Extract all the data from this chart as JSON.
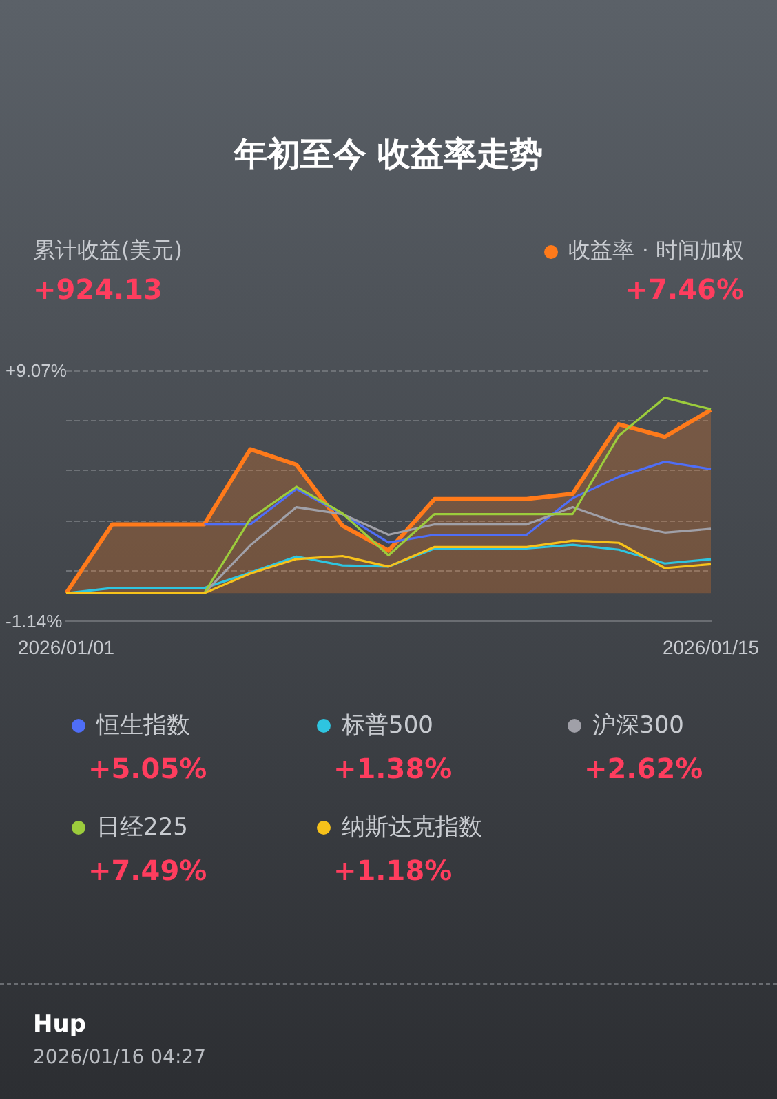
{
  "chart_data": {
    "type": "line",
    "title": "年初至今 收益率走势",
    "categories": [
      "2026/01/01",
      null,
      null,
      null,
      null,
      null,
      null,
      null,
      null,
      null,
      null,
      null,
      null,
      null,
      "2026/01/15"
    ],
    "series": [
      {
        "name": "收益率 · 时间加权",
        "color": "#ff7a1a",
        "type": "area",
        "values": [
          0,
          2.8,
          2.8,
          2.8,
          5.86,
          5.23,
          2.75,
          1.73,
          3.83,
          3.83,
          3.83,
          4.05,
          6.88,
          6.37,
          7.46
        ]
      },
      {
        "name": "恒生指数",
        "color": "#4f6ef7",
        "values": [
          null,
          null,
          null,
          2.8,
          2.8,
          4.24,
          3.22,
          2.06,
          2.38,
          2.38,
          2.38,
          3.87,
          4.74,
          5.35,
          5.05
        ]
      },
      {
        "name": "标普500",
        "color": "#2ec5e0",
        "values": [
          0,
          0.21,
          0.21,
          0.21,
          0.84,
          1.49,
          1.13,
          1.08,
          1.82,
          1.82,
          1.82,
          1.97,
          1.77,
          1.21,
          1.38
        ]
      },
      {
        "name": "沪深300",
        "color": "#a0a0a8",
        "values": [
          null,
          null,
          null,
          0,
          1.95,
          3.5,
          3.22,
          2.38,
          2.8,
          2.8,
          2.8,
          3.5,
          2.84,
          2.47,
          2.62
        ]
      },
      {
        "name": "日经225",
        "color": "#9ccc3c",
        "values": [
          null,
          null,
          null,
          0,
          3.03,
          4.33,
          3.25,
          1.54,
          3.22,
          3.22,
          3.22,
          3.22,
          6.41,
          7.96,
          7.49
        ]
      },
      {
        "name": "纳斯达克指数",
        "color": "#f7c21a",
        "values": [
          0,
          0,
          0,
          0,
          0.8,
          1.39,
          1.51,
          1.08,
          1.88,
          1.88,
          1.88,
          2.14,
          2.05,
          1.02,
          1.18
        ]
      }
    ],
    "ylim": [
      -1.14,
      9.07
    ],
    "yticks": [
      {
        "value": -1.14,
        "label": "-1.14%"
      },
      {
        "value": 0.9,
        "label": null
      },
      {
        "value": 2.94,
        "label": null
      },
      {
        "value": 4.99,
        "label": null
      },
      {
        "value": 7.03,
        "label": null
      },
      {
        "value": 9.07,
        "label": "+9.07%"
      }
    ],
    "grid": "y",
    "legend": "bottom",
    "marker": "none",
    "line_style": "solid",
    "annotations": [
      "累计收益(美元)",
      "+924.13",
      "+7.46%",
      "+5.05%",
      "+1.38%",
      "+2.62%",
      "+7.49%",
      "+1.18%",
      "Hup",
      "2026/01/16 04:27"
    ]
  }
}
